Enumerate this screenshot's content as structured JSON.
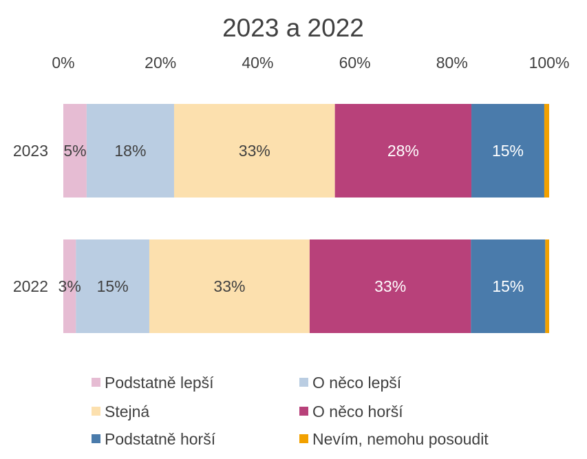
{
  "chart_data": {
    "type": "bar",
    "orientation": "horizontal",
    "stacked": "percent",
    "title": "2023 a 2022",
    "xlim": [
      0,
      100
    ],
    "x_ticks": [
      "0%",
      "20%",
      "40%",
      "60%",
      "80%",
      "100%"
    ],
    "x_tick_values": [
      0,
      20,
      40,
      60,
      80,
      100
    ],
    "x_axis_position": "top",
    "grid": false,
    "legend_position": "bottom",
    "categories": [
      "2023",
      "2022"
    ],
    "series": [
      {
        "name": "Podstatně lepší",
        "color": "#E6BCD3",
        "label_color": "#404040",
        "values": [
          4.8,
          2.6
        ],
        "labels": [
          "5%",
          "3%"
        ]
      },
      {
        "name": "O něco lepší",
        "color": "#BACDE2",
        "label_color": "#404040",
        "values": [
          18.0,
          15.1
        ],
        "labels": [
          "18%",
          "15%"
        ]
      },
      {
        "name": "Stejná",
        "color": "#FCE0AE",
        "label_color": "#404040",
        "values": [
          33.1,
          33.0
        ],
        "labels": [
          "33%",
          "33%"
        ]
      },
      {
        "name": "O něco horší",
        "color": "#B8417A",
        "label_color": "#ffffff",
        "values": [
          28.1,
          33.2
        ],
        "labels": [
          "28%",
          "33%"
        ]
      },
      {
        "name": "Podstatně horší",
        "color": "#4A7BAB",
        "label_color": "#ffffff",
        "values": [
          15.0,
          15.3
        ],
        "labels": [
          "15%",
          "15%"
        ]
      },
      {
        "name": "Nevím, nemohu posoudit",
        "color": "#F2A100",
        "label_color": "#404040",
        "values": [
          1.0,
          0.8
        ],
        "labels": [
          "",
          ""
        ]
      }
    ]
  }
}
